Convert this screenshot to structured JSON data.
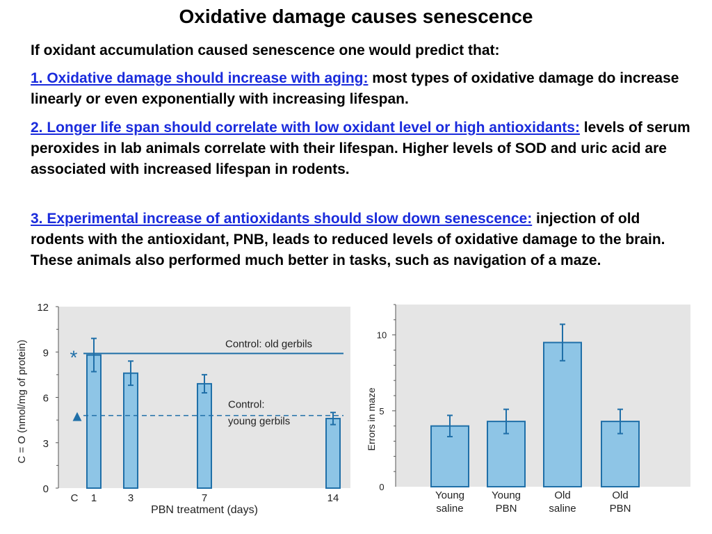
{
  "title": "Oxidative damage causes senescence",
  "intro": "If oxidant accumulation caused senescence one would predict that:",
  "points": [
    {
      "head": "1. Oxidative damage should increase with aging:",
      "body": " most types of oxidative damage do increase linearly or even exponentially with increasing lifespan."
    },
    {
      "head": "2. Longer life span should correlate with low oxidant level or high antioxidants:",
      "body": " levels of serum peroxides in lab animals correlate with their lifespan. Higher levels of SOD and uric acid are associated with increased lifespan in rodents."
    },
    {
      "head": "3. Experimental increase of antioxidants should slow down senescence:",
      "body": " injection of old rodents with the antioxidant, PNB, leads to reduced levels of oxidative damage to the brain. These animals also performed much better in tasks, such as navigation of a maze."
    }
  ],
  "colors": {
    "bar_fill": "#8ec5e6",
    "bar_stroke": "#1f6fa8",
    "panel_bg": "#e5e5e5",
    "link": "#1a2bdc"
  },
  "chart_data": [
    {
      "type": "bar",
      "xlabel": "PBN treatment (days)",
      "ylabel": "C = O (nmol/mg of protein)",
      "ylim": [
        0,
        12
      ],
      "yticks": [
        0,
        3,
        6,
        9,
        12
      ],
      "xticks": [
        "C",
        "1",
        "3",
        "7",
        "14"
      ],
      "categories": [
        "1",
        "3",
        "7",
        "14"
      ],
      "values": [
        8.8,
        7.6,
        6.9,
        4.6
      ],
      "errors": [
        1.1,
        0.8,
        0.6,
        0.4
      ],
      "reference_lines": [
        {
          "label_lines": [
            "Control: old gerbils"
          ],
          "value": 8.9,
          "style": "solid",
          "marker": "*"
        },
        {
          "label_lines": [
            "Control:",
            "young gerbils"
          ],
          "value": 4.8,
          "style": "dashed",
          "marker": "▲"
        }
      ],
      "grid": false
    },
    {
      "type": "bar",
      "xlabel": "",
      "ylabel": "Errors in maze",
      "ylim": [
        0,
        12
      ],
      "yticks": [
        0,
        5,
        10
      ],
      "categories": [
        [
          "Young",
          "saline"
        ],
        [
          "Young",
          "PBN"
        ],
        [
          "Old",
          "saline"
        ],
        [
          "Old",
          "PBN"
        ]
      ],
      "values": [
        4.0,
        4.3,
        9.5,
        4.3
      ],
      "errors": [
        0.7,
        0.8,
        1.2,
        0.8
      ],
      "grid": false
    }
  ]
}
